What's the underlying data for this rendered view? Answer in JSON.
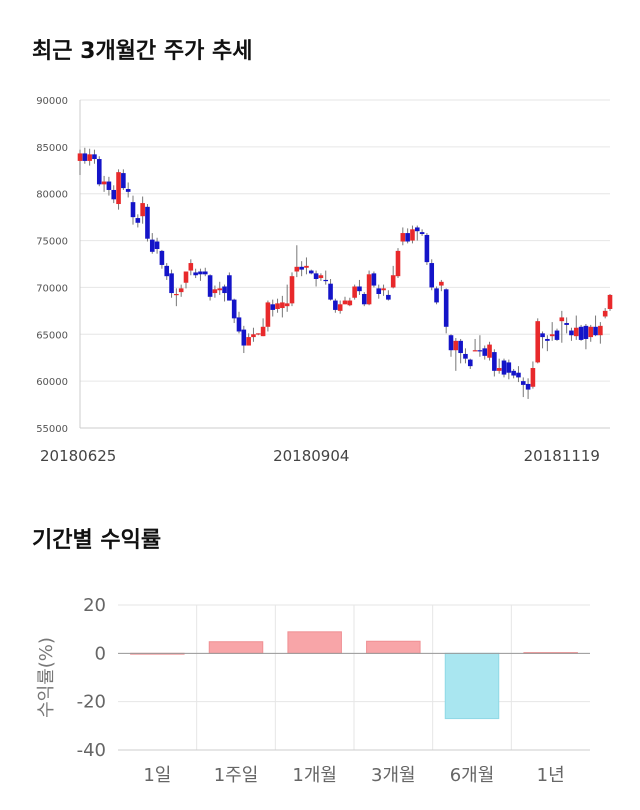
{
  "candle_section": {
    "title": "최근 3개월간 주가 추세"
  },
  "returns_section": {
    "title": "기간별 수익률"
  },
  "colors": {
    "up": "#e8292b",
    "down": "#1414c8",
    "bar_positive": "#f8a5a8",
    "bar_negative": "#a9e6f0",
    "grid": "#e6e6e6"
  },
  "chart_data": [
    {
      "type": "candlestick",
      "ylim": [
        55000,
        90000
      ],
      "y_ticks": [
        "90000",
        "85000",
        "80000",
        "75000",
        "70000",
        "65000",
        "60000",
        "55000"
      ],
      "x_tick_labels": [
        {
          "label": "20180625",
          "index": 0
        },
        {
          "label": "20180904",
          "index": 48
        },
        {
          "label": "20181119",
          "index": 100
        }
      ],
      "grid": true,
      "candles": [
        [
          83500,
          84700,
          82000,
          84300
        ],
        [
          84300,
          84900,
          83200,
          83500
        ],
        [
          83500,
          84800,
          83000,
          84200
        ],
        [
          84200,
          84700,
          83200,
          83700
        ],
        [
          83700,
          84000,
          80800,
          81000
        ],
        [
          81000,
          81900,
          80200,
          81300
        ],
        [
          81300,
          81800,
          79800,
          80400
        ],
        [
          80400,
          80900,
          79000,
          79400
        ],
        [
          78900,
          82600,
          78300,
          82300
        ],
        [
          82200,
          82600,
          80400,
          80600
        ],
        [
          80500,
          81200,
          79600,
          80200
        ],
        [
          79100,
          79800,
          76700,
          77500
        ],
        [
          77400,
          77800,
          76400,
          76900
        ],
        [
          77600,
          79700,
          76800,
          79000
        ],
        [
          78600,
          78900,
          74900,
          75200
        ],
        [
          75100,
          75800,
          73600,
          73800
        ],
        [
          74900,
          75300,
          73600,
          74100
        ],
        [
          73900,
          74000,
          72000,
          72400
        ],
        [
          72300,
          72600,
          70800,
          71200
        ],
        [
          71500,
          71900,
          68900,
          69400
        ],
        [
          69200,
          69900,
          68000,
          69300
        ],
        [
          69500,
          70300,
          69000,
          69900
        ],
        [
          70500,
          71700,
          69900,
          71700
        ],
        [
          71800,
          73000,
          71300,
          72600
        ],
        [
          71600,
          72000,
          71000,
          71300
        ],
        [
          71700,
          72000,
          70700,
          71400
        ],
        [
          71700,
          72100,
          71200,
          71400
        ],
        [
          71300,
          71400,
          68600,
          69000
        ],
        [
          69400,
          70200,
          68900,
          69800
        ],
        [
          69700,
          70600,
          69200,
          69900
        ],
        [
          70100,
          70300,
          68500,
          69400
        ],
        [
          71300,
          71600,
          68600,
          68600
        ],
        [
          68700,
          68800,
          66200,
          66700
        ],
        [
          66800,
          67400,
          65100,
          65300
        ],
        [
          65500,
          65900,
          63000,
          63800
        ],
        [
          63800,
          65100,
          63800,
          64700
        ],
        [
          64700,
          65700,
          64200,
          65000
        ],
        [
          65100,
          65100,
          64900,
          65100
        ],
        [
          64800,
          66700,
          64800,
          65800
        ],
        [
          65800,
          68600,
          65300,
          68400
        ],
        [
          68200,
          68700,
          66900,
          67600
        ],
        [
          67700,
          68800,
          67300,
          68300
        ],
        [
          67800,
          69100,
          66800,
          68400
        ],
        [
          68000,
          70300,
          67400,
          68300
        ],
        [
          68300,
          71600,
          68000,
          71200
        ],
        [
          71700,
          74500,
          71100,
          72200
        ],
        [
          72200,
          72800,
          71200,
          71900
        ],
        [
          72100,
          73200,
          71400,
          72300
        ],
        [
          71800,
          71900,
          71400,
          71500
        ],
        [
          71500,
          71800,
          70100,
          70900
        ],
        [
          71000,
          71500,
          70700,
          71300
        ],
        [
          70800,
          71800,
          70300,
          70700
        ],
        [
          70400,
          70900,
          68600,
          68700
        ],
        [
          68600,
          68800,
          67300,
          67600
        ],
        [
          67500,
          68600,
          67200,
          68200
        ],
        [
          68200,
          69000,
          68200,
          68600
        ],
        [
          68100,
          68900,
          68000,
          68600
        ],
        [
          68900,
          70300,
          68700,
          70100
        ],
        [
          70100,
          70800,
          69200,
          69600
        ],
        [
          69300,
          69500,
          68000,
          68200
        ],
        [
          68200,
          71800,
          68100,
          71400
        ],
        [
          71500,
          71700,
          70000,
          70200
        ],
        [
          69900,
          70300,
          68800,
          69300
        ],
        [
          69700,
          70300,
          69100,
          69900
        ],
        [
          69200,
          69700,
          68600,
          68700
        ],
        [
          70000,
          72300,
          69900,
          71300
        ],
        [
          71200,
          74200,
          71000,
          73900
        ],
        [
          74900,
          76400,
          74500,
          75800
        ],
        [
          75800,
          76300,
          74700,
          74900
        ],
        [
          75000,
          76600,
          74700,
          76200
        ],
        [
          76400,
          76600,
          75000,
          76000
        ],
        [
          75900,
          76200,
          75500,
          75700
        ],
        [
          75600,
          75800,
          72400,
          72700
        ],
        [
          72600,
          73000,
          69700,
          70000
        ],
        [
          69900,
          70100,
          68200,
          68400
        ],
        [
          70200,
          70800,
          69600,
          70600
        ],
        [
          69800,
          69900,
          65100,
          65800
        ],
        [
          64900,
          65000,
          62600,
          63300
        ],
        [
          63300,
          64600,
          61100,
          64300
        ],
        [
          64300,
          64500,
          61900,
          63000
        ],
        [
          62900,
          63500,
          61900,
          62400
        ],
        [
          62300,
          62400,
          61300,
          61600
        ],
        [
          63200,
          64500,
          63200,
          63300
        ],
        [
          63300,
          64900,
          62600,
          63200
        ],
        [
          63500,
          63800,
          62300,
          62700
        ],
        [
          62500,
          64200,
          62200,
          63900
        ],
        [
          63100,
          63400,
          60500,
          61100
        ],
        [
          61100,
          62400,
          60800,
          61400
        ],
        [
          62200,
          62400,
          60400,
          60700
        ],
        [
          62000,
          62300,
          60200,
          60900
        ],
        [
          61100,
          61300,
          60300,
          60600
        ],
        [
          60900,
          61600,
          59900,
          60400
        ],
        [
          60000,
          60400,
          58300,
          59600
        ],
        [
          59700,
          60300,
          58100,
          59100
        ],
        [
          59400,
          62100,
          59200,
          61400
        ],
        [
          62000,
          66700,
          61900,
          66400
        ],
        [
          65100,
          65300,
          63500,
          64700
        ],
        [
          64500,
          64900,
          63200,
          64300
        ],
        [
          64800,
          66300,
          64300,
          65000
        ],
        [
          65400,
          65600,
          64300,
          64400
        ],
        [
          66400,
          67500,
          64100,
          66800
        ],
        [
          66200,
          66800,
          65100,
          66000
        ],
        [
          65400,
          65700,
          64300,
          64900
        ],
        [
          64800,
          67000,
          64400,
          65700
        ],
        [
          65800,
          66000,
          64300,
          64400
        ],
        [
          65900,
          66100,
          63400,
          64500
        ],
        [
          64700,
          66000,
          64200,
          65800
        ],
        [
          65800,
          67000,
          64800,
          64900
        ],
        [
          64900,
          66300,
          64000,
          65900
        ],
        [
          66900,
          67800,
          66700,
          67500
        ],
        [
          67700,
          69300,
          67500,
          69200
        ]
      ]
    },
    {
      "type": "bar",
      "ylabel": "수익률(%)",
      "ylim": [
        -40,
        20
      ],
      "y_ticks": [
        "20",
        "0",
        "-20",
        "-40"
      ],
      "categories": [
        "1일",
        "1주일",
        "1개월",
        "3개월",
        "6개월",
        "1년"
      ],
      "values": [
        0,
        4.8,
        8.9,
        5.0,
        -27.0,
        0.3
      ],
      "grid": true
    }
  ]
}
